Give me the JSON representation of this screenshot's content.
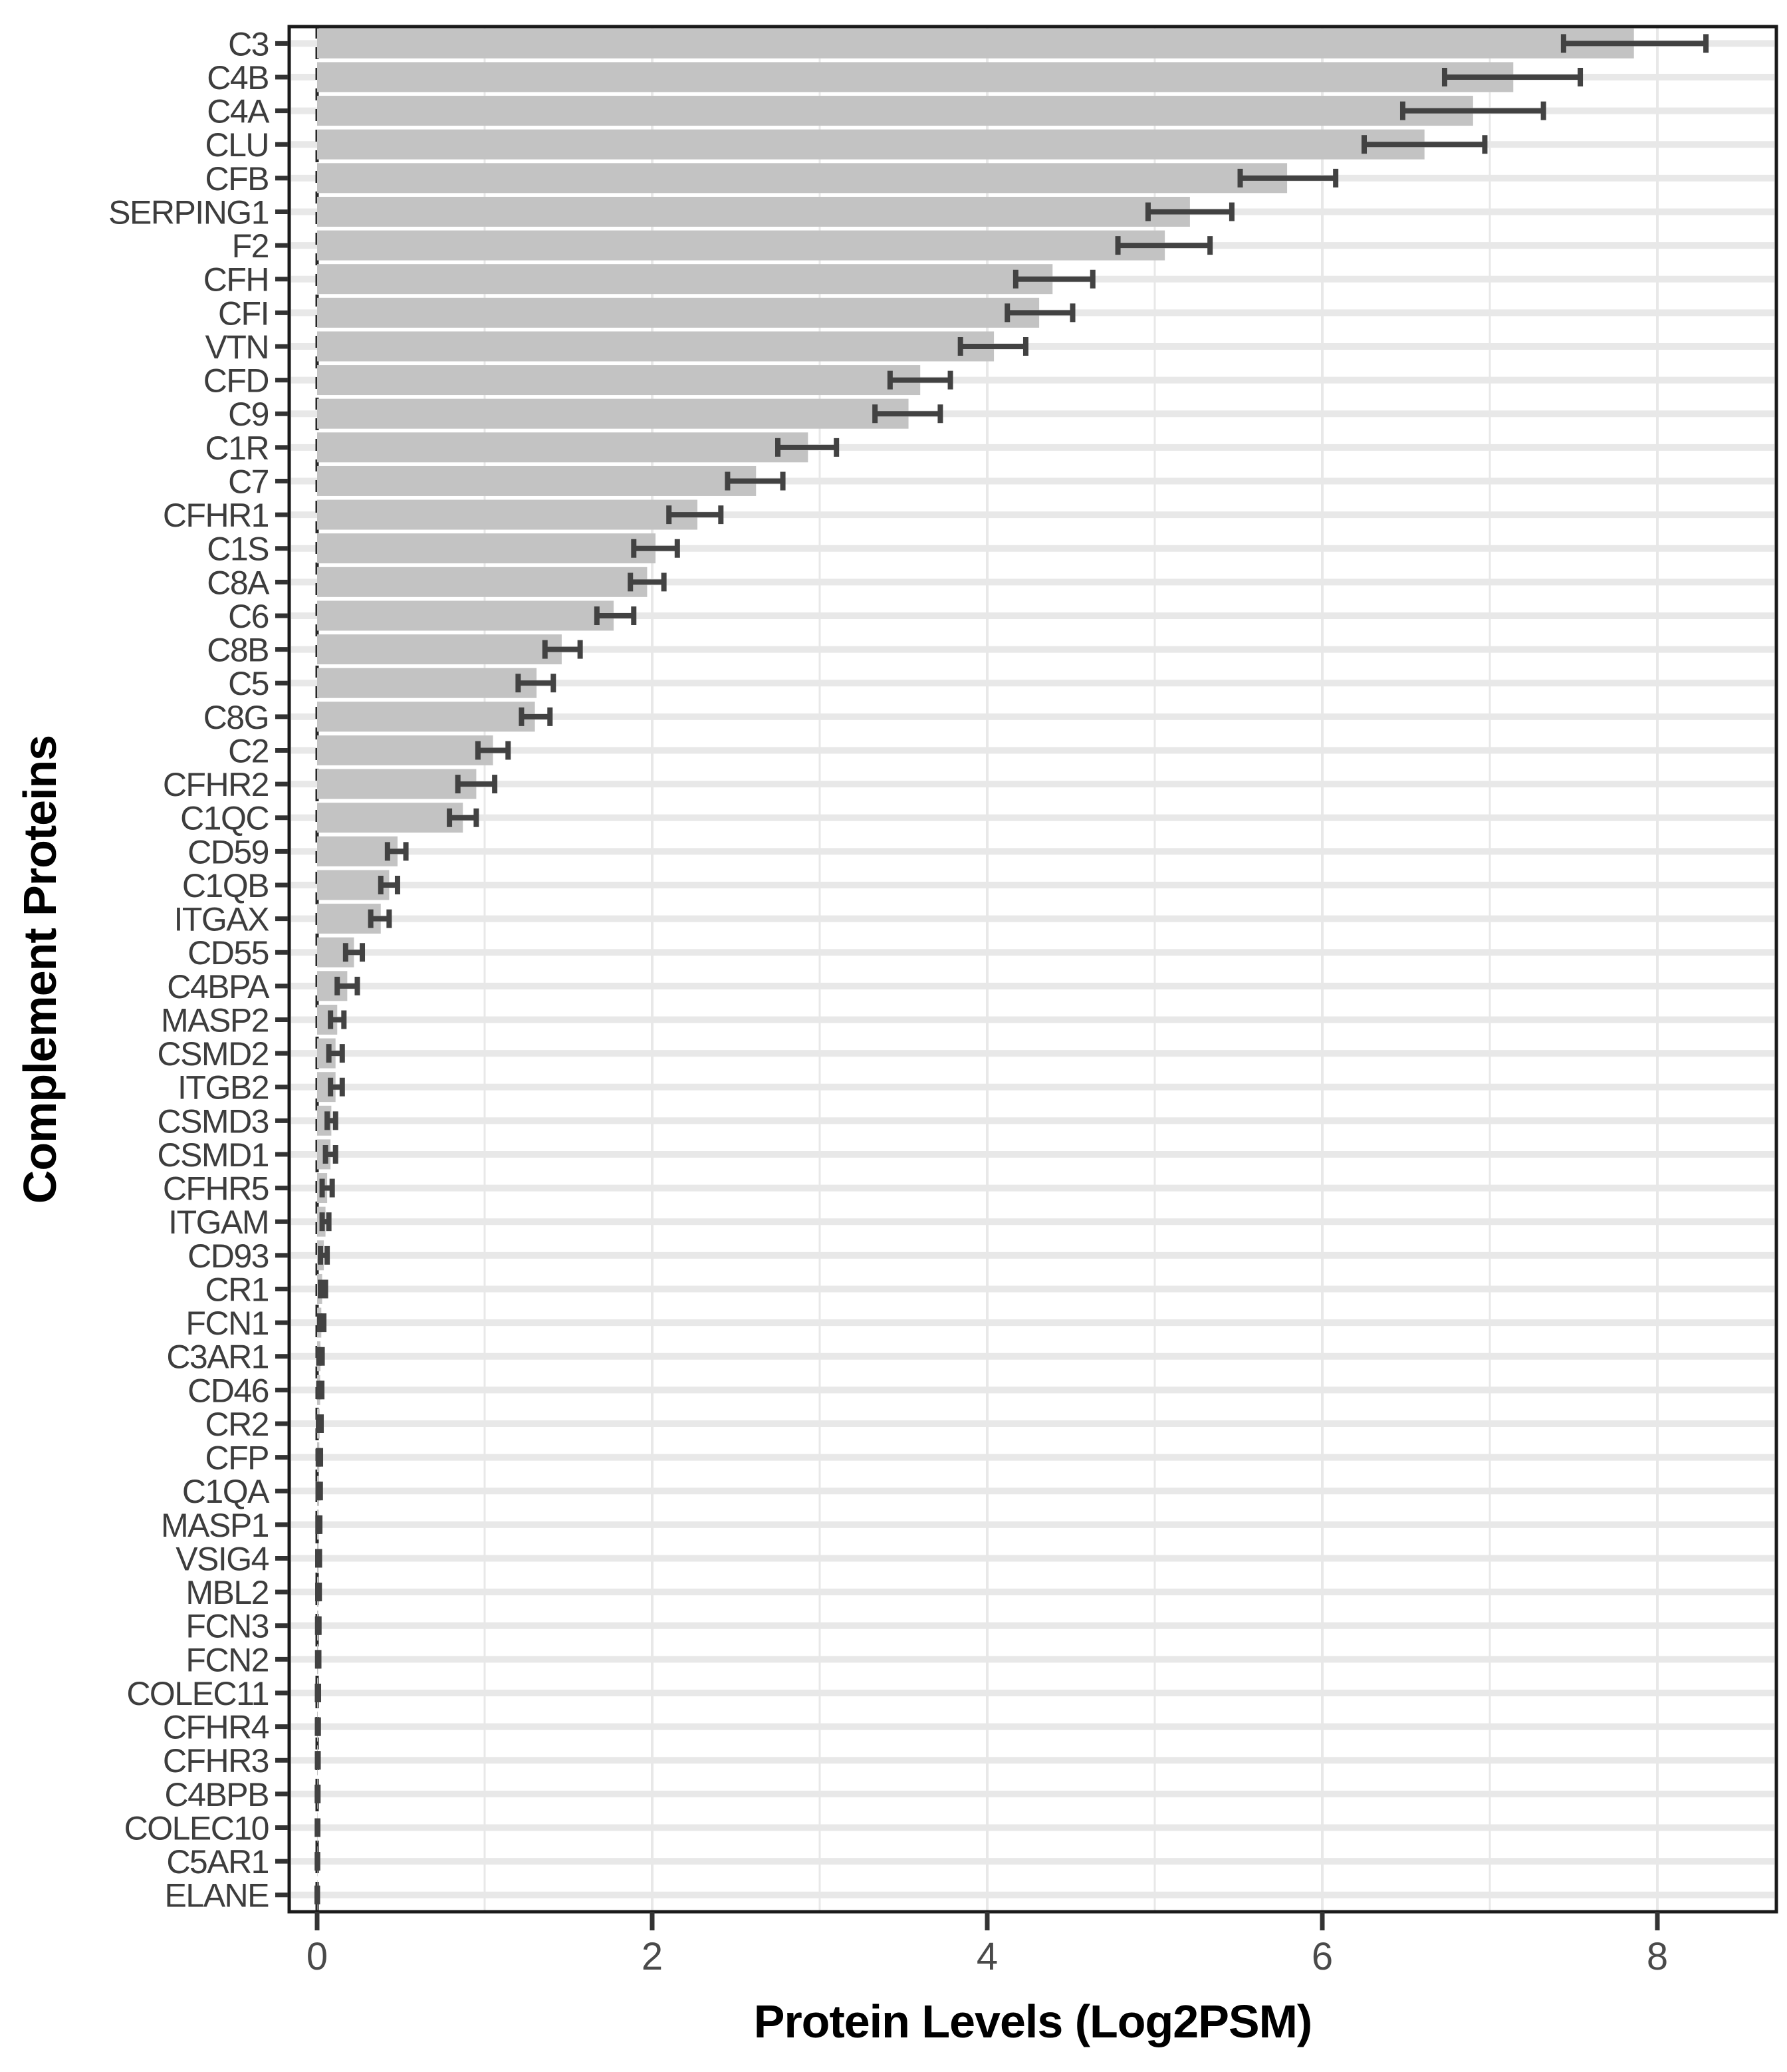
{
  "figure": {
    "background": "#ffffff"
  },
  "colors": {
    "bar_fill": "#c3c3c3",
    "error_bar": "#424242",
    "row_gridline": "#e8e8e8",
    "vertical_gridline": "#e8e8e8",
    "panel_border": "#1a1a1a",
    "tick_mark": "#333333",
    "category_label": "#3d3d3d",
    "tick_label": "#4a4a4a",
    "axis_title": "#000000",
    "zero_line": "#262626"
  },
  "chart_data": {
    "type": "bar",
    "orientation": "horizontal",
    "title": "",
    "xlabel": "Protein Levels (Log2PSM)",
    "ylabel": "Complement Proteins",
    "xlim": [
      -0.17,
      8.71
    ],
    "x_ticks": [
      0,
      2,
      4,
      6,
      8
    ],
    "x_minor_gridlines": [
      1,
      3,
      5,
      7
    ],
    "grid": "light gray horizontal band per category; vertical gridlines at every integer",
    "legend_position": "none",
    "reference_line_x": 0,
    "reference_line_style": "dashed vertical line at x=0",
    "error_bars": "horizontal, dark gray, with end caps",
    "categories": [
      "C3",
      "C4B",
      "C4A",
      "CLU",
      "CFB",
      "SERPING1",
      "F2",
      "CFH",
      "CFI",
      "VTN",
      "CFD",
      "C9",
      "C1R",
      "C7",
      "CFHR1",
      "C1S",
      "C8A",
      "C6",
      "C8B",
      "C5",
      "C8G",
      "C2",
      "CFHR2",
      "C1QC",
      "CD59",
      "C1QB",
      "ITGAX",
      "CD55",
      "C4BPA",
      "MASP2",
      "CSMD2",
      "ITGB2",
      "CSMD3",
      "CSMD1",
      "CFHR5",
      "ITGAM",
      "CD93",
      "CR1",
      "FCN1",
      "C3AR1",
      "CD46",
      "CR2",
      "CFP",
      "C1QA",
      "MASP1",
      "VSIG4",
      "MBL2",
      "FCN3",
      "FCN2",
      "COLEC11",
      "CFHR4",
      "CFHR3",
      "C4BPB",
      "COLEC10",
      "C5AR1",
      "ELANE"
    ],
    "values": [
      7.86,
      7.14,
      6.9,
      6.61,
      5.79,
      5.21,
      5.06,
      4.39,
      4.31,
      4.04,
      3.6,
      3.53,
      2.93,
      2.62,
      2.27,
      2.02,
      1.97,
      1.77,
      1.46,
      1.31,
      1.3,
      1.05,
      0.95,
      0.87,
      0.48,
      0.43,
      0.38,
      0.22,
      0.18,
      0.12,
      0.11,
      0.11,
      0.085,
      0.08,
      0.06,
      0.05,
      0.04,
      0.03,
      0.025,
      0.02,
      0.018,
      0.015,
      0.013,
      0.012,
      0.01,
      0.009,
      0.008,
      0.007,
      0.006,
      0.005,
      0.004,
      0.004,
      0.003,
      0.002,
      0.002,
      0.001
    ],
    "ci_low": [
      7.44,
      6.73,
      6.48,
      6.25,
      5.51,
      4.96,
      4.78,
      4.17,
      4.12,
      3.84,
      3.42,
      3.33,
      2.75,
      2.45,
      2.1,
      1.89,
      1.87,
      1.67,
      1.36,
      1.2,
      1.22,
      0.96,
      0.84,
      0.79,
      0.42,
      0.38,
      0.32,
      0.17,
      0.12,
      0.08,
      0.07,
      0.08,
      0.06,
      0.05,
      0.03,
      0.03,
      0.02,
      0.02,
      0.015,
      0.01,
      0.01,
      0.008,
      0.007,
      0.006,
      0.005,
      0.004,
      0.004,
      0.003,
      0.003,
      0.002,
      0.002,
      0.002,
      0.001,
      0.001,
      0.001,
      0.0
    ],
    "ci_high": [
      8.29,
      7.54,
      7.32,
      6.97,
      6.08,
      5.46,
      5.33,
      4.63,
      4.51,
      4.23,
      3.78,
      3.72,
      3.1,
      2.78,
      2.41,
      2.15,
      2.07,
      1.89,
      1.57,
      1.41,
      1.39,
      1.14,
      1.06,
      0.95,
      0.53,
      0.48,
      0.43,
      0.27,
      0.24,
      0.16,
      0.15,
      0.15,
      0.11,
      0.11,
      0.09,
      0.07,
      0.06,
      0.05,
      0.04,
      0.03,
      0.028,
      0.024,
      0.02,
      0.019,
      0.016,
      0.014,
      0.013,
      0.011,
      0.01,
      0.008,
      0.007,
      0.006,
      0.005,
      0.004,
      0.003,
      0.002
    ]
  }
}
